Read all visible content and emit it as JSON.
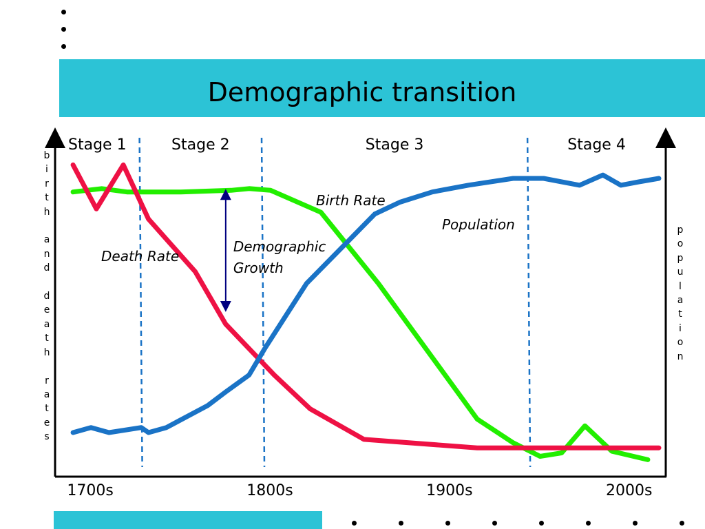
{
  "slide": {
    "title": "Demographic transition",
    "colors": {
      "band": "#2cc3d6",
      "birth_rate": "#22ee00",
      "death_rate": "#ee1144",
      "population": "#1a73c6",
      "stage_divider": "#1a73c6",
      "growth_arrow": "#000080"
    }
  },
  "chart_data": {
    "type": "line",
    "title": "",
    "ylabel": "birth and death rates",
    "y2label": "population",
    "x_ticks": [
      "1700s",
      "1800s",
      "1900s",
      "2000s"
    ],
    "x_tick_values": [
      1700,
      1800,
      1900,
      2000
    ],
    "xlim": [
      1690,
      2030
    ],
    "ylim": [
      0,
      100
    ],
    "grid": false,
    "legend": "none",
    "stages": [
      {
        "label": "Stage 1",
        "start": 1690,
        "end": 1737
      },
      {
        "label": "Stage 2",
        "start": 1737,
        "end": 1805
      },
      {
        "label": "Stage 3",
        "start": 1805,
        "end": 1953
      },
      {
        "label": "Stage 4",
        "start": 1953,
        "end": 2030
      }
    ],
    "series": [
      {
        "name": "Birth Rate",
        "key": "birth_rate",
        "x": [
          1700,
          1716,
          1730,
          1760,
          1788,
          1798,
          1810,
          1838,
          1870,
          1925,
          1945,
          1960,
          1972,
          1985,
          2000,
          2020
        ],
        "y": [
          84,
          85,
          84,
          84,
          84.5,
          85,
          84.5,
          78,
          57,
          17,
          10,
          6,
          7,
          15,
          7.5,
          5
        ]
      },
      {
        "name": "Death Rate",
        "key": "death_rate",
        "x": [
          1700,
          1713,
          1728,
          1742,
          1768,
          1785,
          1812,
          1832,
          1862,
          1925,
          1965,
          2000,
          2030
        ],
        "y": [
          92,
          79,
          92,
          76,
          60.5,
          45,
          30,
          20,
          11,
          8.5,
          8.5,
          8.5,
          8.5
        ]
      },
      {
        "name": "Population",
        "key": "population",
        "x": [
          1700,
          1710,
          1720,
          1738,
          1742,
          1752,
          1775,
          1785,
          1798,
          1807,
          1830,
          1868,
          1882,
          1900,
          1920,
          1945,
          1962,
          1982,
          1995,
          2005,
          2015,
          2040
        ],
        "y": [
          13,
          14.5,
          13,
          14.5,
          13,
          14.5,
          21,
          25,
          30,
          38,
          57,
          77.5,
          81,
          84,
          86,
          88,
          88,
          86,
          89,
          86,
          87,
          88
        ]
      }
    ],
    "annotations": [
      {
        "text": "Demographic\nGrowth",
        "from_x": 1785,
        "from_y": 84.5,
        "to_y": 49
      }
    ]
  }
}
